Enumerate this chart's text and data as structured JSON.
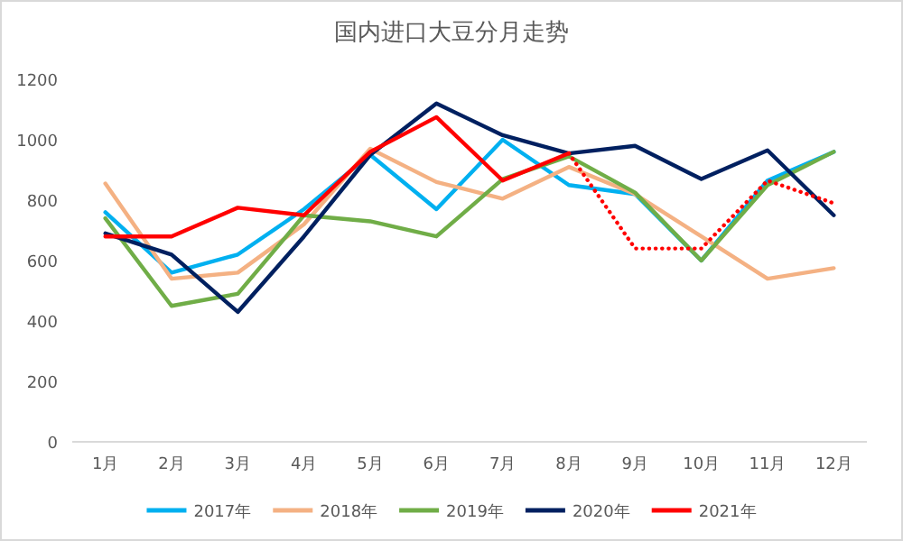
{
  "chart_data": {
    "type": "line",
    "title": "国内进口大豆分月走势",
    "categories": [
      "1月",
      "2月",
      "3月",
      "4月",
      "5月",
      "6月",
      "7月",
      "8月",
      "9月",
      "10月",
      "11月",
      "12月"
    ],
    "ylim": [
      0,
      1200
    ],
    "yticks": [
      0,
      200,
      400,
      600,
      800,
      1000,
      1200
    ],
    "grid": false,
    "legend": "bottom",
    "marker": "none",
    "series": [
      {
        "name": "2017年",
        "color": "#00b0f0",
        "values": [
          760,
          560,
          620,
          770,
          950,
          770,
          1000,
          850,
          820,
          600,
          865,
          960
        ]
      },
      {
        "name": "2018年",
        "color": "#f4b183",
        "values": [
          855,
          540,
          560,
          720,
          970,
          860,
          805,
          910,
          820,
          680,
          540,
          575
        ]
      },
      {
        "name": "2019年",
        "color": "#70ad47",
        "values": [
          740,
          450,
          490,
          750,
          730,
          680,
          870,
          945,
          825,
          600,
          850,
          960
        ]
      },
      {
        "name": "2020年",
        "color": "#002060",
        "values": [
          690,
          620,
          430,
          680,
          950,
          1120,
          1015,
          955,
          980,
          870,
          965,
          750
        ]
      },
      {
        "name": "2021年",
        "color": "#ff0000",
        "values": [
          680,
          680,
          775,
          750,
          960,
          1075,
          865,
          955,
          null,
          null,
          null,
          null
        ]
      },
      {
        "color": "#ff0000",
        "line_style": "dotted",
        "values": [
          null,
          null,
          null,
          null,
          null,
          null,
          null,
          955,
          640,
          640,
          865,
          790
        ]
      }
    ]
  }
}
